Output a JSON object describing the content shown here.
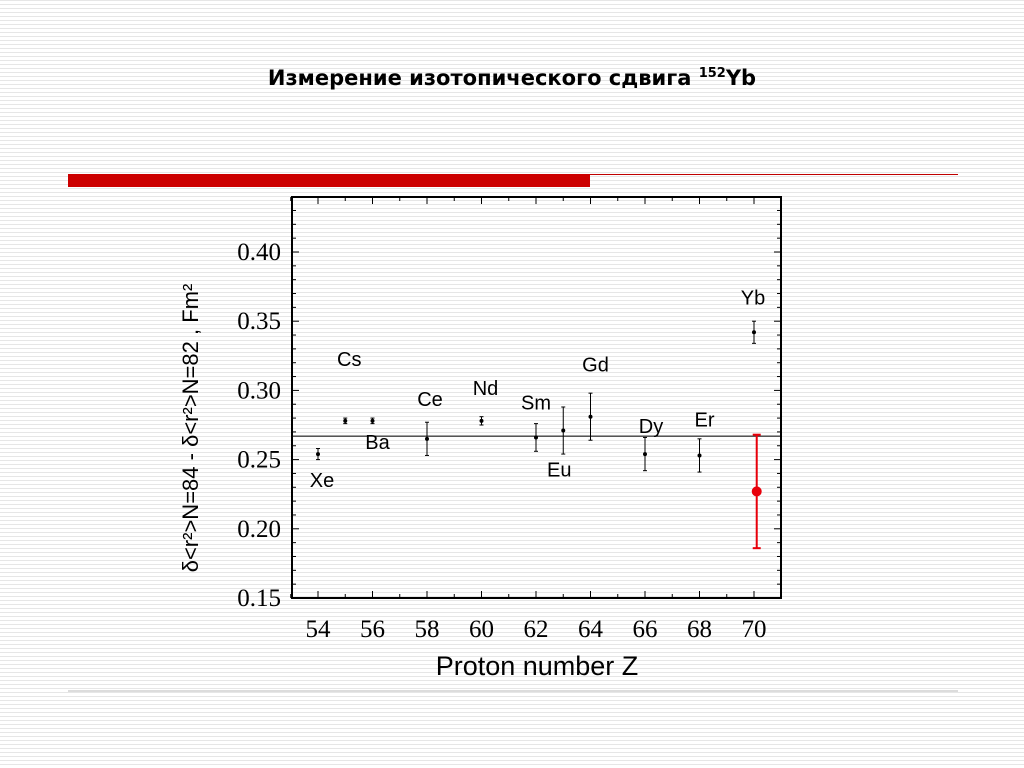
{
  "page": {
    "title_main": "Измерение изотопического сдвига ",
    "title_sup": "152",
    "title_tail": "Yb"
  },
  "colors": {
    "accent": "#cc0000",
    "data_point": "#000000",
    "highlight": "#e8000b"
  },
  "chart_data": {
    "type": "scatter",
    "xlabel": "Proton number Z",
    "ylabel": "δ<r²>N=84 - δ<r²>N=82 , Fm²",
    "xlim": [
      53,
      71
    ],
    "ylim": [
      0.15,
      0.44
    ],
    "x_ticks": [
      54,
      56,
      58,
      60,
      62,
      64,
      66,
      68,
      70
    ],
    "x_tick_labels": [
      "54",
      "56",
      "58",
      "60",
      "62",
      "64",
      "66",
      "68",
      "70"
    ],
    "y_ticks": [
      0.15,
      0.2,
      0.25,
      0.3,
      0.35,
      0.4
    ],
    "y_tick_labels": [
      "0.15",
      "0.20",
      "0.25",
      "0.30",
      "0.35",
      "0.40"
    ],
    "reference_line": {
      "y": 0.267
    },
    "series": [
      {
        "points": [
          {
            "label": "Xe",
            "x": 54,
            "y": 0.254,
            "err": 0.004
          },
          {
            "label": "Cs",
            "x": 55,
            "y": 0.278,
            "err": 0.002
          },
          {
            "label": "Ba",
            "x": 56,
            "y": 0.278,
            "err": 0.002
          },
          {
            "label": "Ce",
            "x": 58,
            "y": 0.265,
            "err": 0.012
          },
          {
            "label": "Nd",
            "x": 60,
            "y": 0.278,
            "err": 0.003
          },
          {
            "label": "Sm",
            "x": 62,
            "y": 0.266,
            "err": 0.01
          },
          {
            "label": "Eu",
            "x": 63,
            "y": 0.271,
            "err": 0.017
          },
          {
            "label": "Gd",
            "x": 64,
            "y": 0.281,
            "err": 0.017
          },
          {
            "label": "Dy",
            "x": 66,
            "y": 0.254,
            "err": 0.012
          },
          {
            "label": "Er",
            "x": 68,
            "y": 0.253,
            "err": 0.012
          },
          {
            "label": "Yb",
            "x": 70,
            "y": 0.342,
            "err": 0.008
          }
        ]
      },
      {
        "highlight": true,
        "points": [
          {
            "x": 70.1,
            "y": 0.227,
            "err": 0.041
          }
        ]
      }
    ]
  }
}
